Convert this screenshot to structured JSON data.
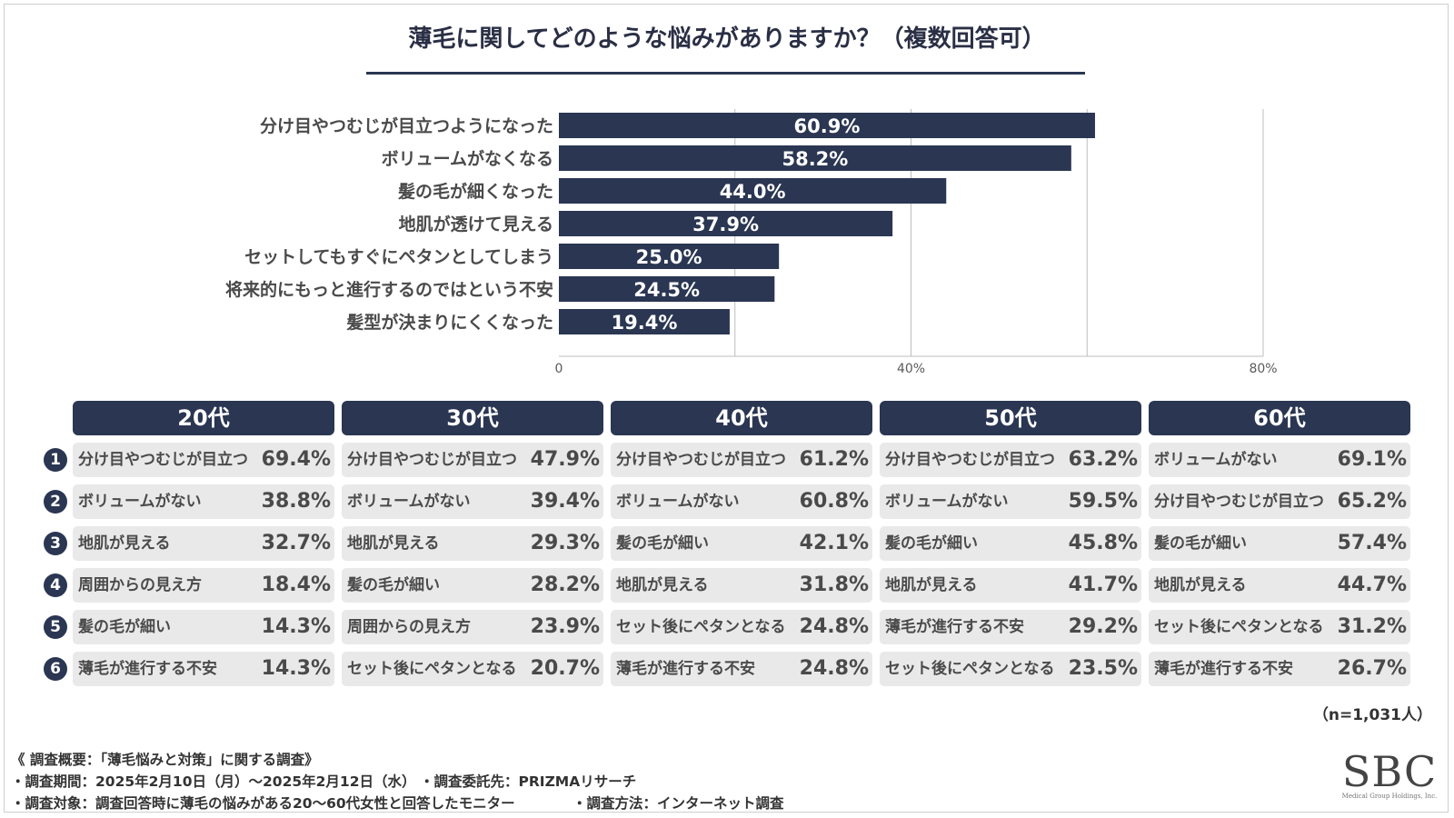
{
  "title": "薄毛に関してどのような悩みがありますか？（複数回答可）",
  "chart_data": {
    "type": "bar",
    "orientation": "horizontal",
    "title": "薄毛に関してどのような悩みがありますか？（複数回答可）",
    "categories": [
      "分け目やつむじが目立つようになった",
      "ボリュームがなくなる",
      "髪の毛が細くなった",
      "地肌が透けて見える",
      "セットしてもすぐにペタンとしてしまう",
      "将来的にもっと進行するのではという不安",
      "髪型が決まりにくくなった"
    ],
    "values": [
      60.9,
      58.2,
      44.0,
      37.9,
      25.0,
      24.5,
      19.4
    ],
    "value_labels": [
      "60.9%",
      "58.2%",
      "44.0%",
      "37.9%",
      "25.0%",
      "24.5%",
      "19.4%"
    ],
    "xlim": [
      0,
      80
    ],
    "xticks": [
      0,
      40,
      80
    ],
    "xtick_labels": [
      "0",
      "40%",
      "80%"
    ],
    "grid": true,
    "bar_color": "#2a3652"
  },
  "age_table": {
    "ranks": [
      "1",
      "2",
      "3",
      "4",
      "5",
      "6"
    ],
    "groups": [
      {
        "label": "20代",
        "items": [
          {
            "name": "分け目やつむじが目立つ",
            "value": "69.4%"
          },
          {
            "name": "ボリュームがない",
            "value": "38.8%"
          },
          {
            "name": "地肌が見える",
            "value": "32.7%"
          },
          {
            "name": "周囲からの見え方",
            "value": "18.4%"
          },
          {
            "name": "髪の毛が細い",
            "value": "14.3%"
          },
          {
            "name": "薄毛が進行する不安",
            "value": "14.3%"
          }
        ]
      },
      {
        "label": "30代",
        "items": [
          {
            "name": "分け目やつむじが目立つ",
            "value": "47.9%"
          },
          {
            "name": "ボリュームがない",
            "value": "39.4%"
          },
          {
            "name": "地肌が見える",
            "value": "29.3%"
          },
          {
            "name": "髪の毛が細い",
            "value": "28.2%"
          },
          {
            "name": "周囲からの見え方",
            "value": "23.9%"
          },
          {
            "name": "セット後にペタンとなる",
            "value": "20.7%"
          }
        ]
      },
      {
        "label": "40代",
        "items": [
          {
            "name": "分け目やつむじが目立つ",
            "value": "61.2%"
          },
          {
            "name": "ボリュームがない",
            "value": "60.8%"
          },
          {
            "name": "髪の毛が細い",
            "value": "42.1%"
          },
          {
            "name": "地肌が見える",
            "value": "31.8%"
          },
          {
            "name": "セット後にペタンとなる",
            "value": "24.8%"
          },
          {
            "name": "薄毛が進行する不安",
            "value": "24.8%"
          }
        ]
      },
      {
        "label": "50代",
        "items": [
          {
            "name": "分け目やつむじが目立つ",
            "value": "63.2%"
          },
          {
            "name": "ボリュームがない",
            "value": "59.5%"
          },
          {
            "name": "髪の毛が細い",
            "value": "45.8%"
          },
          {
            "name": "地肌が見える",
            "value": "41.7%"
          },
          {
            "name": "薄毛が進行する不安",
            "value": "29.2%"
          },
          {
            "name": "セット後にペタンとなる",
            "value": "23.5%"
          }
        ]
      },
      {
        "label": "60代",
        "items": [
          {
            "name": "ボリュームがない",
            "value": "69.1%"
          },
          {
            "name": "分け目やつむじが目立つ",
            "value": "65.2%"
          },
          {
            "name": "髪の毛が細い",
            "value": "57.4%"
          },
          {
            "name": "地肌が見える",
            "value": "44.7%"
          },
          {
            "name": "セット後にペタンとなる",
            "value": "31.2%"
          },
          {
            "name": "薄毛が進行する不安",
            "value": "26.7%"
          }
        ]
      }
    ]
  },
  "sample_note": "（n=1,031人）",
  "footer": {
    "survey_title": "《 調査概要：「薄毛悩みと対策」に関する調査》",
    "period": "・調査期間：2025年2月10日（月）～2025年2月12日（水）",
    "commissioned": "・調査委託先：PRIZMAリサーチ",
    "target": "・調査対象：調査回答時に薄毛の悩みがある20～60代女性と回答したモニター",
    "method": "・調査方法：インターネット調査"
  },
  "logo": {
    "text": "SBC",
    "subtitle": "Medical Group Holdings, Inc."
  }
}
